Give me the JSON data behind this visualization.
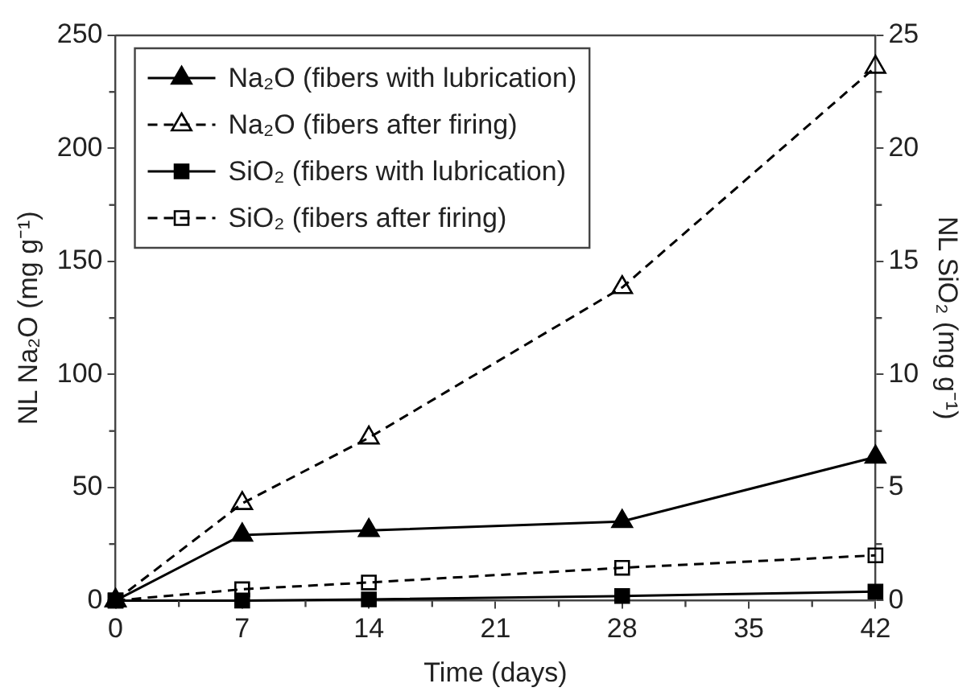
{
  "chart_data": {
    "type": "line",
    "xlabel": "Time (days)",
    "ylabel": "NL Na₂O (mg g⁻¹)",
    "y2label": "NL SiO₂ (mg g⁻¹)",
    "x": [
      0,
      7,
      14,
      28,
      42
    ],
    "series": [
      {
        "name": "Na₂O (fibers with lubrication)",
        "color": "#000000",
        "marker": "triangle",
        "line_style": "solid",
        "values": [
          0,
          29,
          31,
          35,
          63.5
        ]
      },
      {
        "name": "Na₂O (fibers after firing)",
        "color": "#000000",
        "marker": "triangle",
        "line_style": "dashed",
        "values": [
          0,
          43,
          72,
          138.5,
          236
        ]
      },
      {
        "name": "SiO₂ (fibers with lubrication)",
        "color": "#000000",
        "marker": "square",
        "line_style": "solid",
        "axis": "y2",
        "values": [
          0,
          0,
          0.05,
          0.2,
          0.4
        ]
      },
      {
        "name": "SiO₂ (fibers after firing)",
        "color": "#000000",
        "marker": "square",
        "line_style": "dashed",
        "axis": "y2",
        "values": [
          0,
          0.5,
          0.8,
          1.45,
          2
        ]
      }
    ],
    "xlim": [
      0,
      42
    ],
    "xticks": [
      0,
      {
        "value": 3.5,
        "label": null
      },
      7,
      {
        "value": 10.5,
        "label": null
      },
      14,
      {
        "value": 17.5,
        "label": null
      },
      21,
      {
        "value": 24.5,
        "label": null
      },
      28,
      {
        "value": 31.5,
        "label": null
      },
      35,
      {
        "value": 38.5,
        "label": null
      },
      42
    ],
    "ylim": [
      0,
      250
    ],
    "yticks": [
      0,
      {
        "value": 25,
        "label": null
      },
      50,
      {
        "value": 75,
        "label": null
      },
      100,
      {
        "value": 125,
        "label": null
      },
      150,
      {
        "value": 175,
        "label": null
      },
      200,
      {
        "value": 225,
        "label": null
      },
      250
    ],
    "y2lim": [
      0,
      25
    ],
    "y2ticks": [
      0,
      {
        "value": 2.5,
        "label": null
      },
      5,
      {
        "value": 7.5,
        "label": null
      },
      10,
      {
        "value": 12.5,
        "label": null
      },
      15,
      {
        "value": 17.5,
        "label": null
      },
      20,
      {
        "value": 22.5,
        "label": null
      },
      25
    ],
    "grid": false,
    "legend": "top left"
  }
}
